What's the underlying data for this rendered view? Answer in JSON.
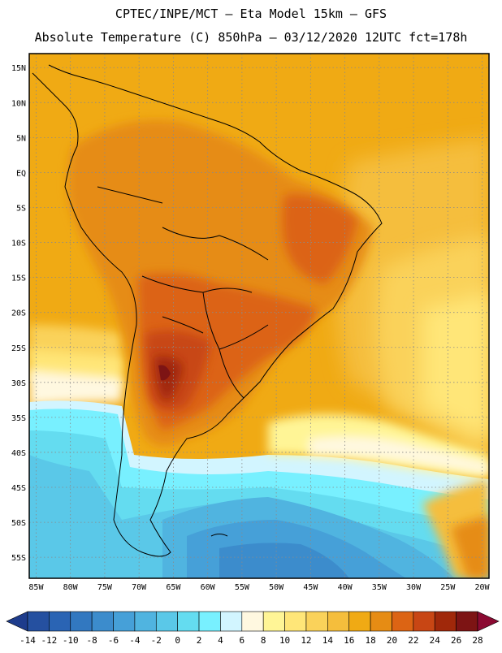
{
  "header": {
    "line1": "CPTEC/INPE/MCT –  Eta Model 15km – GFS",
    "line2": "Absolute Temperature (C) 850hPa – 03/12/2020 12UTC fct=178h"
  },
  "map": {
    "lat_labels": [
      "15N",
      "10N",
      "5N",
      "EQ",
      "5S",
      "10S",
      "15S",
      "20S",
      "25S",
      "30S",
      "35S",
      "40S",
      "45S",
      "50S",
      "55S"
    ],
    "lat_values": [
      15,
      10,
      5,
      0,
      -5,
      -10,
      -15,
      -20,
      -25,
      -30,
      -35,
      -40,
      -45,
      -50,
      -55
    ],
    "lon_labels": [
      "85W",
      "80W",
      "75W",
      "70W",
      "65W",
      "60W",
      "55W",
      "50W",
      "45W",
      "40W",
      "35W",
      "30W",
      "25W",
      "20W"
    ],
    "lon_values": [
      -85,
      -80,
      -75,
      -70,
      -65,
      -60,
      -55,
      -50,
      -45,
      -40,
      -35,
      -30,
      -25,
      -20
    ],
    "lat_range": [
      -58,
      17
    ],
    "lon_range": [
      -86,
      -19
    ]
  },
  "colorbar": {
    "labels": [
      "-14",
      "-12",
      "-10",
      "-8",
      "-6",
      "-4",
      "-2",
      "0",
      "2",
      "4",
      "6",
      "8",
      "10",
      "12",
      "14",
      "16",
      "18",
      "20",
      "22",
      "24",
      "26",
      "28"
    ],
    "colors": [
      "#1e3c8c",
      "#2550a0",
      "#2a64b4",
      "#3278c0",
      "#3c8ccc",
      "#46a0d8",
      "#50b4e0",
      "#5ac8e8",
      "#64dcf0",
      "#78f0ff",
      "#d2f5ff",
      "#fff8e0",
      "#fff596",
      "#ffe678",
      "#fad25a",
      "#f5be3c",
      "#f0aa14",
      "#e68c14",
      "#dc6414",
      "#c84614",
      "#a0280a",
      "#7d1414",
      "#8b0a32"
    ]
  }
}
